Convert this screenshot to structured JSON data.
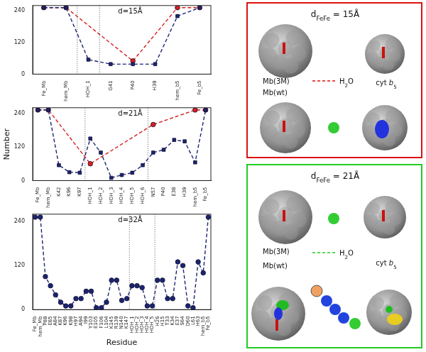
{
  "chart_data": [
    {
      "type": "line",
      "annotation": "d=15Å",
      "grid": false,
      "categories": [
        "Fe_Mb",
        "hem_Mb",
        "HOH_1",
        "G41",
        "P40",
        "H39",
        "hem_b5",
        "Fe_b5"
      ],
      "ylim": [
        0,
        260
      ],
      "yticks": [
        0,
        120,
        240
      ],
      "series": [
        {
          "color": "#1c2470",
          "marker": "square",
          "line_style": "dashed",
          "values": [
            252,
            252,
            55,
            38,
            38,
            38,
            220,
            252
          ]
        },
        {
          "color": "#d62020",
          "marker": "circle",
          "line_style": "dashed",
          "values": [
            252,
            252,
            null,
            null,
            50,
            null,
            252,
            252
          ]
        }
      ]
    },
    {
      "type": "line",
      "annotation": "d=21Å",
      "grid": false,
      "y_label": "Number",
      "categories": [
        "Fe_Mb",
        "hem_Mb",
        "K42",
        "K96",
        "K97",
        "HOH_1",
        "HOH_2",
        "HOH_3",
        "HOH_4",
        "HOH_5",
        "HOH_6",
        "N57",
        "P40",
        "E38",
        "H39",
        "hem_b5",
        "Fe_b5"
      ],
      "ylim": [
        0,
        260
      ],
      "yticks": [
        0,
        120,
        240
      ],
      "series": [
        {
          "color": "#1c2470",
          "marker": "square",
          "line_style": "dashed",
          "values": [
            252,
            252,
            55,
            30,
            28,
            150,
            100,
            10,
            20,
            28,
            55,
            100,
            110,
            145,
            140,
            65,
            252
          ]
        },
        {
          "color": "#d62020",
          "marker": "circle",
          "line_style": "dashed",
          "values": [
            252,
            252,
            null,
            null,
            null,
            60,
            null,
            null,
            null,
            null,
            null,
            200,
            null,
            null,
            null,
            252,
            252
          ]
        }
      ]
    },
    {
      "type": "line",
      "annotation": "d=32Å",
      "grid": false,
      "x_label": "Residue",
      "categories": [
        "Fe_Mb",
        "hem_Mb",
        "P88",
        "E85",
        "A84",
        "K87",
        "K96",
        "K98",
        "H97",
        "A94",
        "I99",
        "Y103",
        "E105",
        "F106",
        "L104",
        "K145",
        "R139",
        "N140",
        "K147",
        "HOH_1",
        "HOH_2",
        "HOH_3",
        "HOH_4",
        "HOH_5",
        "H26",
        "H15",
        "T33",
        "K34",
        "E37",
        "S64",
        "D60",
        "L61",
        "H63",
        "hem_b5",
        "Fe_b5"
      ],
      "ylim": [
        0,
        260
      ],
      "yticks": [
        0,
        120,
        240
      ],
      "series": [
        {
          "color": "#1c2470",
          "marker": "circle",
          "line_style": "dashed",
          "values": [
            252,
            252,
            90,
            65,
            40,
            20,
            10,
            10,
            30,
            30,
            50,
            50,
            5,
            5,
            20,
            80,
            80,
            25,
            30,
            65,
            65,
            60,
            10,
            10,
            80,
            80,
            30,
            30,
            130,
            120,
            10,
            5,
            130,
            100,
            252
          ]
        }
      ]
    }
  ],
  "panels": [
    {
      "title": [
        {
          "text": "d"
        },
        {
          "text": "FeFe",
          "style": "sub"
        },
        {
          "text": " = 15Å"
        }
      ],
      "mb3m": [
        {
          "text": "Mb(3M)"
        }
      ],
      "water": [
        {
          "text": "H"
        },
        {
          "text": "2",
          "style": "sub"
        },
        {
          "text": "O"
        }
      ],
      "cytb5": [
        {
          "text": "cyt "
        },
        {
          "text": "b",
          "style": "italic"
        },
        {
          "text": "5",
          "style": "sub"
        }
      ],
      "mbwt": [
        {
          "text": "Mb(wt)"
        }
      ]
    },
    {
      "title": [
        {
          "text": "d"
        },
        {
          "text": "FeFe",
          "style": "sub"
        },
        {
          "text": " = 21Å"
        }
      ],
      "mb3m": [
        {
          "text": "Mb(3M)"
        }
      ],
      "water": [
        {
          "text": "H"
        },
        {
          "text": "2",
          "style": "sub"
        },
        {
          "text": "O"
        }
      ],
      "cytb5": [
        {
          "text": "cyt "
        },
        {
          "text": "b",
          "style": "italic"
        },
        {
          "text": "5",
          "style": "sub"
        }
      ],
      "mbwt": [
        {
          "text": "Mb(wt)"
        }
      ]
    }
  ]
}
